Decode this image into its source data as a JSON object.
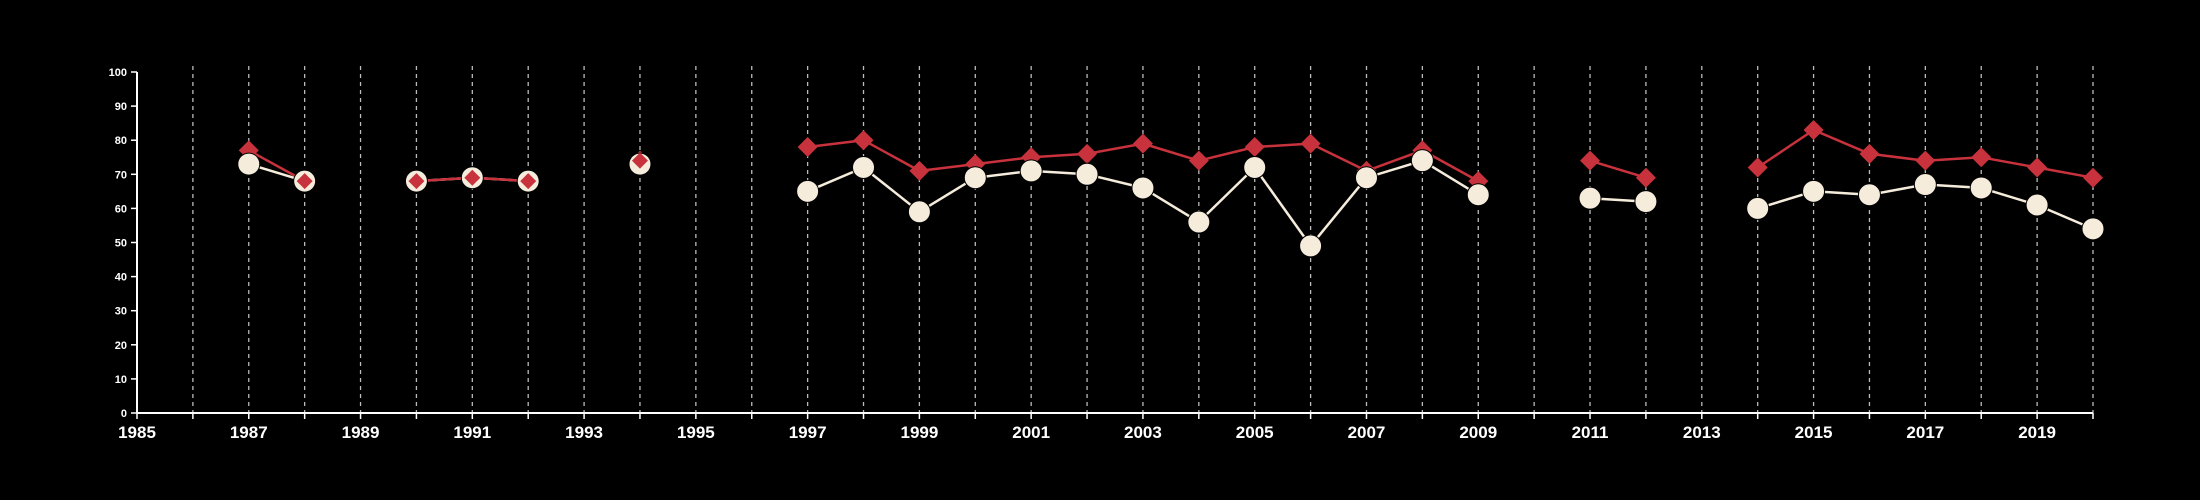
{
  "chart_data": {
    "type": "line",
    "x_ticks": [
      "1985",
      "1987",
      "1989",
      "1991",
      "1993",
      "1995",
      "1997",
      "1999",
      "2001",
      "2003",
      "2005",
      "2007",
      "2009",
      "2011",
      "2013",
      "2015",
      "2017",
      "2019"
    ],
    "y_ticks": [
      "0",
      "10",
      "20",
      "30",
      "40",
      "50",
      "60",
      "70",
      "80",
      "90",
      "100"
    ],
    "xlim": [
      1985,
      2020
    ],
    "ylim": [
      0,
      100
    ],
    "grid": "vertical dashed lines at each year",
    "legend": "none",
    "series": [
      {
        "marker": "diamond",
        "color": "#c8323c",
        "points": [
          [
            1987,
            77
          ],
          [
            1988,
            68
          ],
          [
            1990,
            68
          ],
          [
            1991,
            69
          ],
          [
            1992,
            68
          ],
          [
            1994,
            74
          ],
          [
            1997,
            78
          ],
          [
            1998,
            80
          ],
          [
            1999,
            71
          ],
          [
            2000,
            73
          ],
          [
            2001,
            75
          ],
          [
            2002,
            76
          ],
          [
            2003,
            79
          ],
          [
            2004,
            74
          ],
          [
            2005,
            78
          ],
          [
            2006,
            79
          ],
          [
            2007,
            71
          ],
          [
            2008,
            77
          ],
          [
            2009,
            68
          ],
          [
            2011,
            74
          ],
          [
            2012,
            69
          ],
          [
            2014,
            72
          ],
          [
            2015,
            83
          ],
          [
            2016,
            76
          ],
          [
            2017,
            74
          ],
          [
            2018,
            75
          ],
          [
            2019,
            72
          ],
          [
            2020,
            69
          ]
        ]
      },
      {
        "marker": "circle",
        "color": "#f5ecdc",
        "points": [
          [
            1987,
            73
          ],
          [
            1988,
            68
          ],
          [
            1990,
            68
          ],
          [
            1991,
            69
          ],
          [
            1992,
            68
          ],
          [
            1994,
            73
          ],
          [
            1997,
            65
          ],
          [
            1998,
            72
          ],
          [
            1999,
            59
          ],
          [
            2000,
            69
          ],
          [
            2001,
            71
          ],
          [
            2002,
            70
          ],
          [
            2003,
            66
          ],
          [
            2004,
            56
          ],
          [
            2005,
            72
          ],
          [
            2006,
            49
          ],
          [
            2007,
            69
          ],
          [
            2008,
            74
          ],
          [
            2009,
            64
          ],
          [
            2011,
            63
          ],
          [
            2012,
            62
          ],
          [
            2014,
            60
          ],
          [
            2015,
            65
          ],
          [
            2016,
            64
          ],
          [
            2017,
            67
          ],
          [
            2018,
            66
          ],
          [
            2019,
            61
          ],
          [
            2020,
            54
          ]
        ]
      }
    ]
  },
  "colors": {
    "background": "#000000",
    "axis": "#ffffff",
    "grid": "#bbbbbb",
    "diamond_series": "#c8323c",
    "circle_series": "#f5ecdc"
  }
}
